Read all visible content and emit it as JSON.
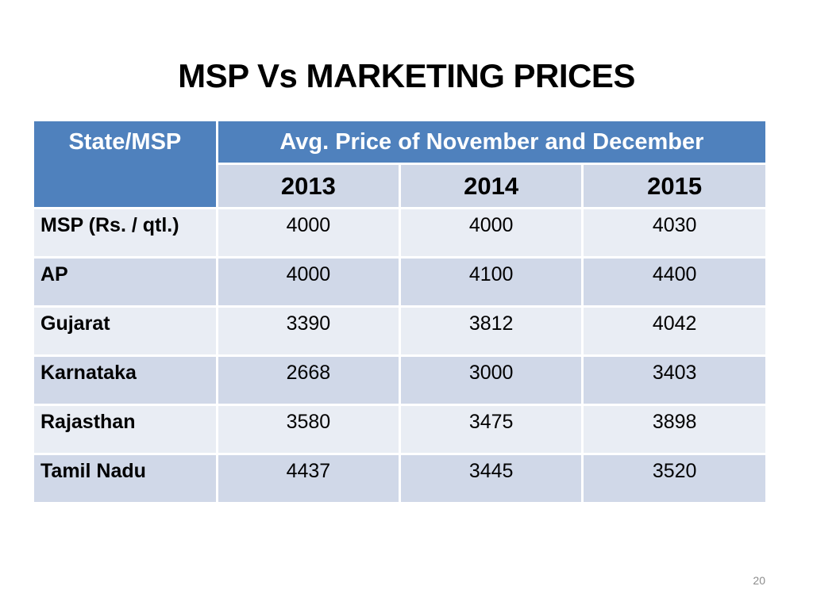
{
  "title": "MSP Vs MARKETING PRICES",
  "table": {
    "state_header": "State/MSP",
    "group_header": "Avg. Price of November and December",
    "years": [
      "2013",
      "2014",
      "2015"
    ],
    "rows": [
      {
        "label": "MSP (Rs. / qtl.)",
        "values": [
          "4000",
          "4000",
          "4030"
        ]
      },
      {
        "label": "AP",
        "values": [
          "4000",
          "4100",
          "4400"
        ]
      },
      {
        "label": "Gujarat",
        "values": [
          "3390",
          "3812",
          "4042"
        ]
      },
      {
        "label": "Karnataka",
        "values": [
          "2668",
          "3000",
          "3403"
        ]
      },
      {
        "label": "Rajasthan",
        "values": [
          "3580",
          "3475",
          "3898"
        ]
      },
      {
        "label": "Tamil Nadu",
        "values": [
          "4437",
          "3445",
          "3520"
        ]
      }
    ]
  },
  "slide_number": "20",
  "colors": {
    "header_blue": "#4f81bd",
    "row_light": "#e9edf4",
    "row_dark": "#d0d8e8"
  }
}
